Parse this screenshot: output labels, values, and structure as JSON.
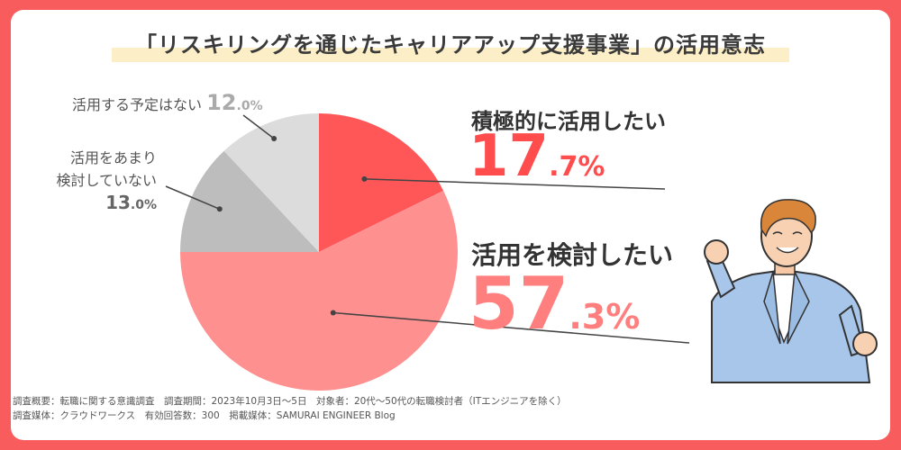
{
  "title": "「リスキリングを通じたキャリアアップ支援事業」の活用意志",
  "chart_data": {
    "type": "pie",
    "slices": [
      {
        "label": "積極的に活用したい",
        "value_int": "17",
        "value_dec": ".7%",
        "value": 17.7,
        "color": "#ff5757"
      },
      {
        "label": "活用を検討したい",
        "value_int": "57",
        "value_dec": ".3%",
        "value": 57.3,
        "color": "#ff9090"
      },
      {
        "label_line1": "活用をあまり",
        "label_line2": "検討していない",
        "value_int": "13",
        "value_dec": ".0%",
        "value": 13.0,
        "color": "#bdbdbd"
      },
      {
        "label": "活用する予定はない",
        "value_int": "12",
        "value_dec": ".0%",
        "value": 12.0,
        "color": "#dcdcdc"
      }
    ]
  },
  "footer": {
    "line1": "調査概要：転職に関する意識調査　調査期間：2023年10月3日〜5日　対象者：20代〜50代の転職検討者（ITエンジニアを除く）",
    "line2": "調査媒体：クラウドワークス　有効回答数：300　掲載媒体：SAMURAI ENGINEER Blog"
  }
}
